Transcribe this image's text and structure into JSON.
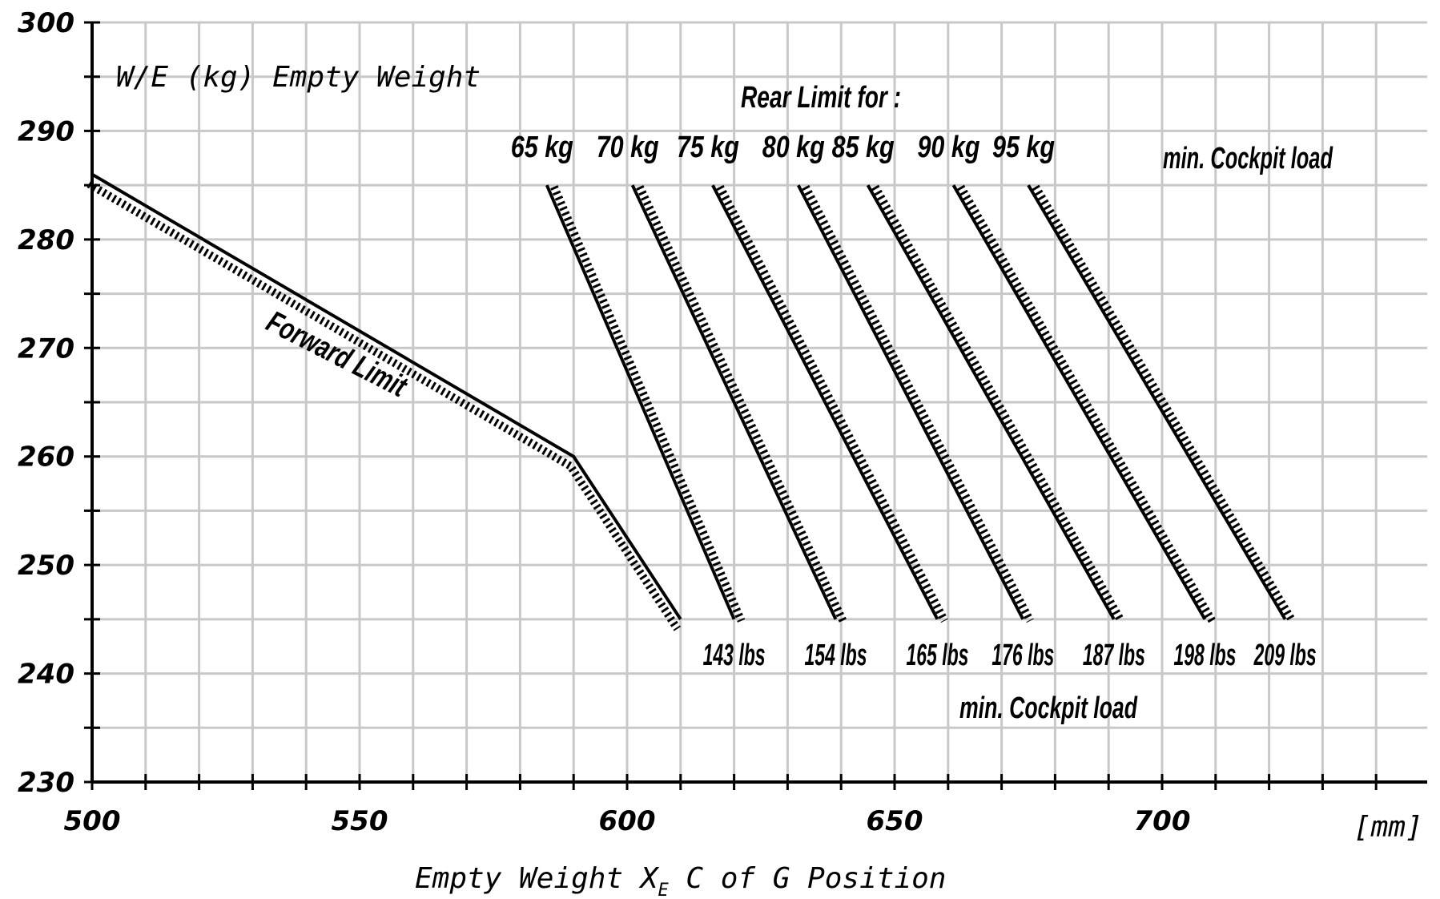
{
  "chart_data": {
    "type": "line",
    "title": "",
    "xlabel": "Empty Weight X",
    "xlabel_sub": "E",
    "xlabel_tail": " C of G Position",
    "ylabel": "W/E (kg) Empty Weight",
    "x_unit": "[mm]",
    "xlim": [
      500,
      730
    ],
    "ylim": [
      230,
      300
    ],
    "x_ticks": [
      "500",
      "550",
      "600",
      "650",
      "700"
    ],
    "y_ticks": [
      "230",
      "240",
      "250",
      "260",
      "270",
      "280",
      "290",
      "300"
    ],
    "grid": true,
    "forward_limit": {
      "name": "Forward Limit",
      "points": [
        [
          500,
          286
        ],
        [
          590,
          260
        ],
        [
          610,
          245
        ]
      ]
    },
    "rear_limit_title": "Rear Limit for :",
    "rear_limit_header": "min. Cockpit load",
    "rear_limit_footer": "min. Cockpit load",
    "series": [
      {
        "name": "65 kg",
        "lbs": "143 lbs",
        "x": [
          585,
          620
        ],
        "y": [
          285,
          245
        ]
      },
      {
        "name": "70 kg",
        "lbs": "154 lbs",
        "x": [
          601,
          639
        ],
        "y": [
          285,
          245
        ]
      },
      {
        "name": "75 kg",
        "lbs": "165 lbs",
        "x": [
          616,
          658
        ],
        "y": [
          285,
          245
        ]
      },
      {
        "name": "80 kg",
        "lbs": "176 lbs",
        "x": [
          632,
          674
        ],
        "y": [
          285,
          245
        ]
      },
      {
        "name": "85 kg",
        "lbs": "187 lbs",
        "x": [
          645,
          691
        ],
        "y": [
          285,
          245
        ]
      },
      {
        "name": "90 kg",
        "lbs": "198 lbs",
        "x": [
          661,
          708
        ],
        "y": [
          285,
          245
        ]
      },
      {
        "name": "95 kg",
        "lbs": "209 lbs",
        "x": [
          675,
          723
        ],
        "y": [
          285,
          245
        ]
      }
    ]
  }
}
